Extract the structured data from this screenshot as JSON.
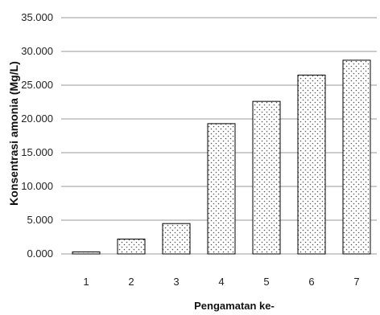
{
  "chart_data": {
    "type": "bar",
    "categories": [
      "1",
      "2",
      "3",
      "4",
      "5",
      "6",
      "7"
    ],
    "values": [
      0.3,
      2.2,
      4.5,
      19.3,
      22.6,
      26.5,
      28.7
    ],
    "ytick_labels": [
      "0.000",
      "5.000",
      "10.000",
      "15.000",
      "20.000",
      "25.000",
      "30.000",
      "35.000"
    ],
    "ylim": [
      0,
      35
    ],
    "xlabel": "Pengamatan ke-",
    "ylabel": "Konsentrasi amonia (Mg/L)",
    "grid": true,
    "legend": "none",
    "colors": {
      "bar_fill": "#ffffff",
      "bar_stroke": "#000000",
      "pattern": "#555555",
      "grid": "#9a9a9a"
    }
  }
}
